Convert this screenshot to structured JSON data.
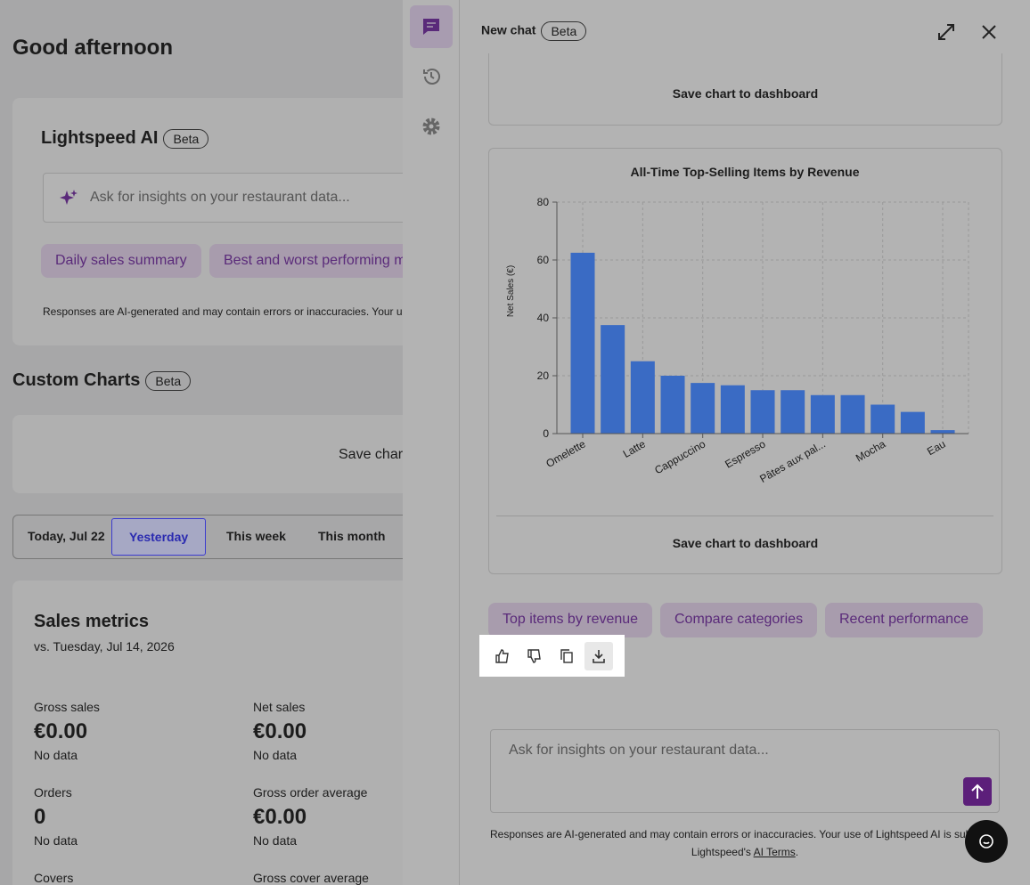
{
  "greeting": "Good afternoon",
  "ai_card": {
    "title": "Lightspeed AI",
    "badge": "Beta",
    "placeholder": "Ask for insights on your restaurant data...",
    "chips": [
      "Daily sales summary",
      "Best and worst performing menu items"
    ],
    "disclaimer": "Responses are AI-generated and may contain errors or inaccuracies. Your use of Lightspeed AI is subject to Lightspeed's AI Terms."
  },
  "custom_charts": {
    "title": "Custom Charts",
    "badge": "Beta",
    "save": "Save chart to dashboard"
  },
  "date_tabs": [
    "Today, Jul 22",
    "Yesterday",
    "This week",
    "This month"
  ],
  "sales_metrics": {
    "title": "Sales metrics",
    "subtitle": "vs. Tuesday, Jul 14, 2026",
    "metrics": [
      {
        "label": "Gross sales",
        "value": "€0.00",
        "note": "No data"
      },
      {
        "label": "Net sales",
        "value": "€0.00",
        "note": "No data"
      },
      {
        "label": "Orders",
        "value": "0",
        "note": "No data"
      },
      {
        "label": "Gross order average",
        "value": "€0.00",
        "note": "No data"
      },
      {
        "label": "Covers"
      },
      {
        "label": "Gross cover average"
      }
    ]
  },
  "panel": {
    "title": "New chat",
    "badge": "Beta",
    "save_top": "Save chart to dashboard",
    "save_bottom": "Save chart to dashboard",
    "suggestions": [
      "Top items by revenue",
      "Compare categories",
      "Recent performance"
    ],
    "input_placeholder": "Ask for insights on your restaurant data...",
    "disclaimer": "Responses are AI-generated and may contain errors or inaccuracies. Your use of Lightspeed AI is subject to",
    "terms_prefix": "Lightspeed's",
    "terms_link": "AI Terms",
    "terms_suffix": "."
  },
  "chart_data": {
    "type": "bar",
    "title": "All-Time Top-Selling Items by Revenue",
    "y_label": "Net Sales (€)",
    "categories": [
      "Omelette",
      null,
      "Latte",
      null,
      "Cappuccino",
      null,
      "Espresso",
      null,
      "Pâtes aux pal...",
      null,
      "Mocha",
      null,
      "Eau"
    ],
    "values": [
      62.5,
      37.5,
      25,
      20,
      17.5,
      16.7,
      15,
      15,
      13.3,
      13.3,
      10,
      7.5,
      1.2
    ],
    "color": "#3a6bc4",
    "ylim": [
      0,
      80
    ],
    "yticks": [
      0,
      20,
      40,
      60,
      80
    ],
    "grid": true
  }
}
